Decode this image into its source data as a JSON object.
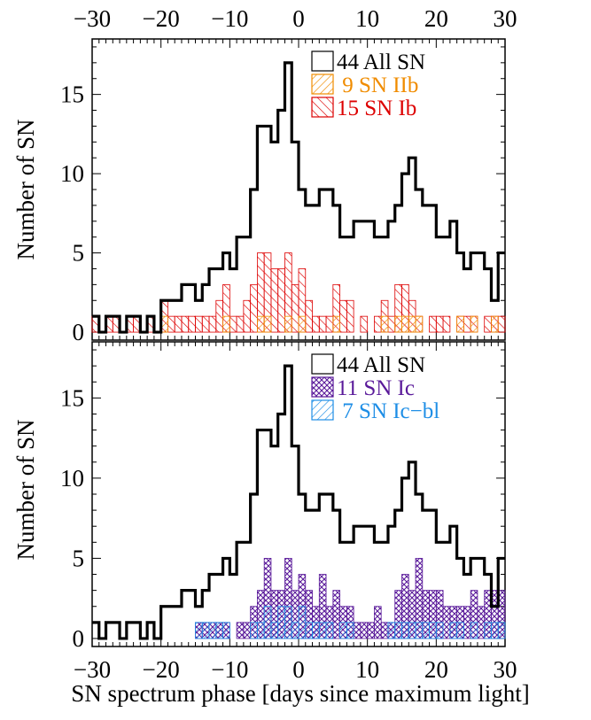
{
  "chart_data": [
    {
      "type": "histogram",
      "panel": "top",
      "ylabel": "Number of SN",
      "xlabel": "",
      "x_top_tick_labels": [
        "−30",
        "−20",
        "−10",
        "0",
        "10",
        "20",
        "30"
      ],
      "y_tick_labels": [
        "0",
        "5",
        "10",
        "15"
      ],
      "xlim": [
        -30,
        30
      ],
      "ylim": [
        -0.5,
        18.5
      ],
      "bin_width": 1,
      "bin_starts": [
        -30,
        -29,
        -28,
        -27,
        -26,
        -25,
        -24,
        -23,
        -22,
        -21,
        -20,
        -19,
        -18,
        -17,
        -16,
        -15,
        -14,
        -13,
        -12,
        -11,
        -10,
        -9,
        -8,
        -7,
        -6,
        -5,
        -4,
        -3,
        -2,
        -1,
        0,
        1,
        2,
        3,
        4,
        5,
        6,
        7,
        8,
        9,
        10,
        11,
        12,
        13,
        14,
        15,
        16,
        17,
        18,
        19,
        20,
        21,
        22,
        23,
        24,
        25,
        26,
        27,
        28,
        29
      ],
      "legend": {
        "position": "top-right",
        "entries": [
          {
            "label": "44 All SN",
            "color": "#000000",
            "hatch": "none"
          },
          {
            "label": " 9 SN IIb",
            "color": "#f08c00",
            "hatch": "diagonal-down"
          },
          {
            "label": "15 SN Ib",
            "color": "#dd0000",
            "hatch": "diagonal-up"
          }
        ]
      },
      "series": [
        {
          "name": "44 All SN",
          "style": "step-outline",
          "color": "#000000",
          "values": [
            1,
            0,
            1,
            1,
            0,
            1,
            1,
            0,
            1,
            0,
            2,
            2,
            2,
            3,
            3,
            2,
            3,
            4,
            4,
            5,
            4,
            6,
            6,
            9,
            13,
            13,
            12,
            14,
            17,
            12,
            9,
            8,
            8,
            9,
            9,
            8,
            6,
            6,
            7,
            7,
            7,
            6,
            6,
            7,
            8,
            10,
            11,
            9,
            8,
            8,
            6,
            6,
            7,
            5,
            4,
            5,
            5,
            4,
            2,
            5
          ]
        },
        {
          "name": "15 SN Ib",
          "style": "hatched",
          "hatch": "diagonal-up",
          "color": "#dd0000",
          "values": [
            1,
            0,
            1,
            1,
            0,
            1,
            1,
            0,
            1,
            0,
            2,
            1,
            1,
            1,
            1,
            1,
            1,
            1,
            2,
            3,
            1,
            1,
            2,
            3,
            5,
            5,
            4,
            4,
            5,
            3,
            4,
            2,
            1,
            1,
            1,
            3,
            2,
            2,
            0,
            1,
            0,
            1,
            2,
            1,
            3,
            3,
            2,
            1,
            0,
            1,
            1,
            1,
            0,
            1,
            1,
            1,
            0,
            1,
            1,
            1
          ]
        },
        {
          "name": " 9 SN IIb",
          "style": "hatched",
          "hatch": "diagonal-down",
          "color": "#f08c00",
          "values": [
            0,
            0,
            0,
            0,
            0,
            0,
            0,
            0,
            0,
            0,
            1,
            0,
            0,
            0,
            0,
            0,
            0,
            0,
            0,
            1,
            0,
            0,
            0,
            0,
            1,
            1,
            0,
            0,
            1,
            0,
            1,
            0,
            0,
            0,
            0,
            1,
            0,
            0,
            0,
            0,
            0,
            0,
            1,
            0,
            1,
            1,
            1,
            1,
            0,
            0,
            0,
            0,
            0,
            1,
            0,
            1,
            0,
            0,
            1,
            0
          ]
        }
      ]
    },
    {
      "type": "histogram",
      "panel": "bottom",
      "ylabel": "Number of SN",
      "xlabel": "SN spectrum phase [days since maximum light]",
      "x_tick_labels": [
        "−30",
        "−20",
        "−10",
        "0",
        "10",
        "20",
        "30"
      ],
      "y_tick_labels": [
        "0",
        "5",
        "10",
        "15"
      ],
      "xlim": [
        -30,
        30
      ],
      "ylim": [
        -0.5,
        18.5
      ],
      "bin_width": 1,
      "bin_starts": [
        -30,
        -29,
        -28,
        -27,
        -26,
        -25,
        -24,
        -23,
        -22,
        -21,
        -20,
        -19,
        -18,
        -17,
        -16,
        -15,
        -14,
        -13,
        -12,
        -11,
        -10,
        -9,
        -8,
        -7,
        -6,
        -5,
        -4,
        -3,
        -2,
        -1,
        0,
        1,
        2,
        3,
        4,
        5,
        6,
        7,
        8,
        9,
        10,
        11,
        12,
        13,
        14,
        15,
        16,
        17,
        18,
        19,
        20,
        21,
        22,
        23,
        24,
        25,
        26,
        27,
        28,
        29
      ],
      "legend": {
        "position": "top-right",
        "entries": [
          {
            "label": "44 All SN",
            "color": "#000000",
            "hatch": "none"
          },
          {
            "label": "11 SN Ic",
            "color": "#5a1a9a",
            "hatch": "crosshatch"
          },
          {
            "label": " 7 SN Ic−bl",
            "color": "#1e8ee6",
            "hatch": "diagonal-down"
          }
        ]
      },
      "series": [
        {
          "name": "44 All SN",
          "style": "step-outline",
          "color": "#000000",
          "values": [
            1,
            0,
            1,
            1,
            0,
            1,
            1,
            0,
            1,
            0,
            2,
            2,
            2,
            3,
            3,
            2,
            3,
            4,
            4,
            5,
            4,
            6,
            6,
            9,
            13,
            13,
            12,
            14,
            17,
            12,
            9,
            8,
            8,
            9,
            9,
            8,
            6,
            6,
            7,
            7,
            7,
            6,
            6,
            7,
            8,
            10,
            11,
            9,
            8,
            8,
            6,
            6,
            7,
            5,
            4,
            5,
            5,
            4,
            2,
            5
          ]
        },
        {
          "name": "11 SN Ic",
          "style": "hatched",
          "hatch": "crosshatch",
          "color": "#5a1a9a",
          "values": [
            0,
            0,
            0,
            0,
            0,
            0,
            0,
            0,
            0,
            0,
            0,
            0,
            0,
            0,
            0,
            1,
            1,
            1,
            1,
            1,
            0,
            1,
            1,
            2,
            3,
            5,
            3,
            3,
            5,
            3,
            4,
            3,
            2,
            4,
            2,
            3,
            2,
            2,
            1,
            1,
            1,
            2,
            1,
            1,
            3,
            4,
            3,
            5,
            3,
            3,
            3,
            2,
            2,
            2,
            2,
            3,
            2,
            3,
            3,
            3
          ]
        },
        {
          "name": " 7 SN Ic−bl",
          "style": "hatched",
          "hatch": "diagonal-down",
          "color": "#1e8ee6",
          "values": [
            0,
            0,
            0,
            0,
            0,
            0,
            0,
            0,
            0,
            0,
            0,
            0,
            0,
            0,
            0,
            1,
            1,
            1,
            1,
            1,
            0,
            0,
            0,
            1,
            1,
            2,
            1,
            2,
            2,
            1,
            2,
            1,
            1,
            1,
            1,
            0,
            1,
            1,
            0,
            0,
            0,
            0,
            0,
            1,
            1,
            1,
            1,
            1,
            1,
            1,
            1,
            0,
            1,
            1,
            0,
            1,
            0,
            1,
            1,
            1
          ]
        }
      ]
    }
  ]
}
